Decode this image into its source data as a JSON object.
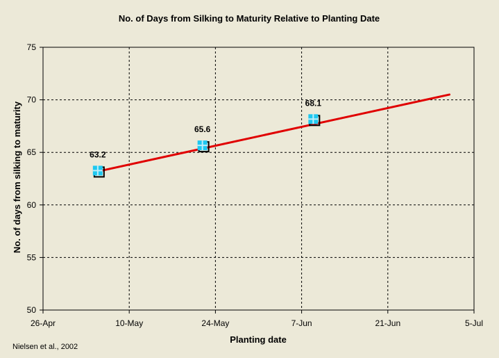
{
  "chart_data": {
    "type": "scatter",
    "title": "No. of Days from Silking to Maturity Relative to Planting Date",
    "xlabel": "Planting date",
    "ylabel": "No. of days from silking to maturity",
    "xlim": [
      "26-Apr",
      "5-Jul"
    ],
    "ylim": [
      50,
      75
    ],
    "x_tick_labels": [
      "26-Apr",
      "10-May",
      "24-May",
      "7-Jun",
      "21-Jun",
      "5-Jul"
    ],
    "y_tick_labels": [
      "50",
      "55",
      "60",
      "65",
      "70",
      "75"
    ],
    "grid": true,
    "series": [
      {
        "points": [
          {
            "x": "5-May",
            "y": 63.2,
            "label": "63.2"
          },
          {
            "x": "22-May",
            "y": 65.6,
            "label": "65.6"
          },
          {
            "x": "9-Jun",
            "y": 68.1,
            "label": "68.1"
          }
        ],
        "marker_color": "#1ec8f0"
      }
    ],
    "trendline": {
      "start": {
        "x": "5-May",
        "y": 63.2
      },
      "end": {
        "x": "1-Jul",
        "y": 70.5
      },
      "color": "#e00000"
    },
    "credit": "Nielsen et al., 2002"
  }
}
